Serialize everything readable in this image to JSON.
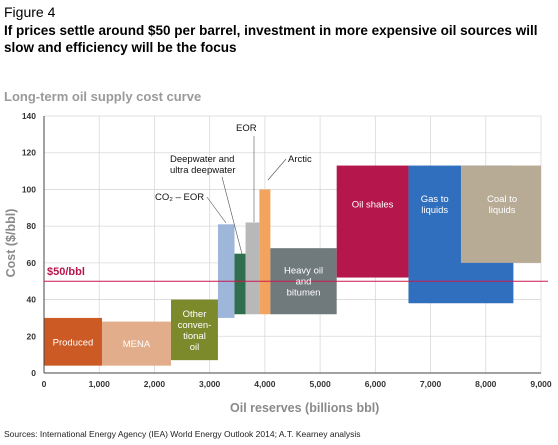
{
  "figure_label": "Figure 4",
  "headline": "If prices settle around $50 per barrel, investment in more expensive oil sources will slow and efficiency will be the focus",
  "sources": "Sources: International Energy Agency (IEA) World Energy Outlook 2014; A.T. Kearney analysis",
  "chart_data": {
    "type": "bar",
    "title": "Long-term oil supply cost curve",
    "xlabel": "Oil reserves (billions bbl)",
    "ylabel": "Cost ($/bbl)",
    "xlim": [
      0,
      9000
    ],
    "ylim": [
      0,
      140
    ],
    "x_ticks": [
      "0",
      "1,000",
      "2,000",
      "3,000",
      "4,000",
      "5,000",
      "6,000",
      "7,000",
      "8,000",
      "9,000"
    ],
    "y_ticks": [
      "0",
      "20",
      "40",
      "60",
      "80",
      "100",
      "120",
      "140"
    ],
    "grid": true,
    "reference_line": {
      "value": 50,
      "label": "$50/bbl",
      "color": "#c8194f"
    },
    "bars": [
      {
        "label": "Produced",
        "x_start": 0,
        "x_end": 1050,
        "y_low": 4,
        "y_high": 30,
        "color": "#cc5a25",
        "label_inside": true,
        "label_color": "#ffffff"
      },
      {
        "label": "MENA",
        "x_start": 1050,
        "x_end": 2300,
        "y_low": 4,
        "y_high": 28,
        "color": "#e2ad8a",
        "label_inside": true,
        "label_color": "#ffffff"
      },
      {
        "label": "Other conven- tional oil",
        "x_start": 2300,
        "x_end": 3150,
        "y_low": 7,
        "y_high": 40,
        "color": "#7c8a2c",
        "label_inside": true,
        "label_color": "#ffffff"
      },
      {
        "label": "CO₂ – EOR",
        "x_start": 3150,
        "x_end": 3450,
        "y_low": 30,
        "y_high": 81,
        "color": "#9eb6d9",
        "label_inside": false
      },
      {
        "label": "Deepwater and ultra deepwater",
        "x_start": 3450,
        "x_end": 3650,
        "y_low": 32,
        "y_high": 65,
        "color": "#2f6e4f",
        "label_inside": false
      },
      {
        "label": "EOR",
        "x_start": 3650,
        "x_end": 3900,
        "y_low": 32,
        "y_high": 82,
        "color": "#b8b8b8",
        "label_inside": false
      },
      {
        "label": "Arctic",
        "x_start": 3900,
        "x_end": 4100,
        "y_low": 32,
        "y_high": 100,
        "color": "#f2a45e",
        "label_inside": false
      },
      {
        "label": "Heavy oil and bitumen",
        "x_start": 4100,
        "x_end": 5300,
        "y_low": 32,
        "y_high": 68,
        "color": "#707a7d",
        "label_inside": true,
        "label_color": "#ffffff"
      },
      {
        "label": "Oil shales",
        "x_start": 5300,
        "x_end": 6600,
        "y_low": 52,
        "y_high": 113,
        "color": "#b5164b",
        "label_inside": true,
        "label_color": "#ffffff"
      },
      {
        "label": "Gas to liquids",
        "x_start": 6600,
        "x_end": 8500,
        "y_low": 38,
        "y_high": 113,
        "color": "#2f6fbe",
        "label_inside": true,
        "label_color": "#ffffff"
      },
      {
        "label": "Coal to liquids",
        "x_start": 7550,
        "x_end": 9000,
        "y_low": 60,
        "y_high": 113,
        "color": "#b7ab96",
        "label_inside": true,
        "label_color": "#ffffff"
      }
    ]
  }
}
